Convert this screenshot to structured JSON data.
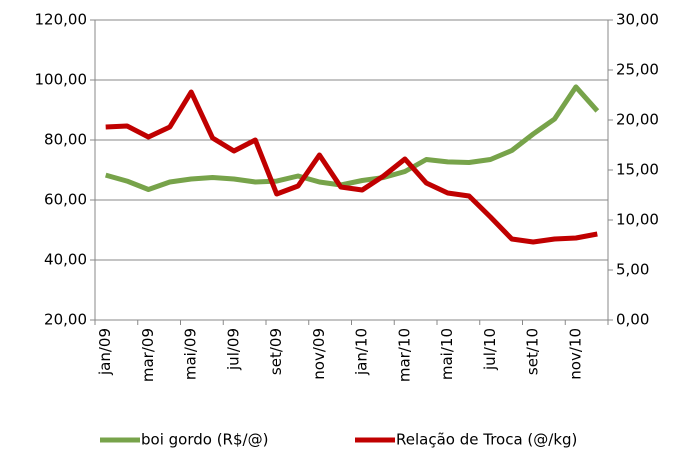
{
  "chart_data": {
    "type": "line",
    "categories": [
      "jan/09",
      null,
      "mar/09",
      null,
      "mai/09",
      null,
      "jul/09",
      null,
      "set/09",
      null,
      "nov/09",
      null,
      "jan/10",
      null,
      "mar/10",
      null,
      "mai/10",
      null,
      "jul/10",
      null,
      "set/10",
      null,
      "nov/10",
      null
    ],
    "series": [
      {
        "name": "boi gordo (R$/@)",
        "color": "#77a34a",
        "values": [
          68.3,
          66.3,
          63.5,
          66,
          67,
          67.5,
          67,
          66,
          66.3,
          68,
          66,
          65,
          66.5,
          67.5,
          69.5,
          73.5,
          72.7,
          72.5,
          73.5,
          76.5,
          82,
          87,
          97.7,
          89.7
        ]
      },
      {
        "name": "Relação de Troca (@/kg)",
        "color": "#c00000",
        "axis": "y2",
        "values": [
          19.3,
          19.4,
          18.3,
          19.3,
          22.8,
          18.2,
          16.9,
          18,
          12.6,
          13.4,
          16.5,
          13.3,
          13,
          14.4,
          16.1,
          13.7,
          12.7,
          12.4,
          10.3,
          8.1,
          7.8,
          8.1,
          8.2,
          8.6
        ]
      }
    ],
    "ylim": [
      20,
      120
    ],
    "yticks": [
      {
        "value": 20,
        "label": "20,00"
      },
      {
        "value": 40,
        "label": "40,00"
      },
      {
        "value": 60,
        "label": "60,00"
      },
      {
        "value": 80,
        "label": "80,00"
      },
      {
        "value": 100,
        "label": "100,00"
      },
      {
        "value": 120,
        "label": "120,00"
      }
    ],
    "y2lim": [
      0,
      30
    ],
    "y2ticks": [
      {
        "value": 0,
        "label": "0,00"
      },
      {
        "value": 5,
        "label": "5,00"
      },
      {
        "value": 10,
        "label": "10,00"
      },
      {
        "value": 15,
        "label": "15,00"
      },
      {
        "value": 20,
        "label": "20,00"
      },
      {
        "value": 25,
        "label": "25,00"
      },
      {
        "value": 30,
        "label": "30,00"
      }
    ],
    "grid": true,
    "legend": "bottom"
  }
}
